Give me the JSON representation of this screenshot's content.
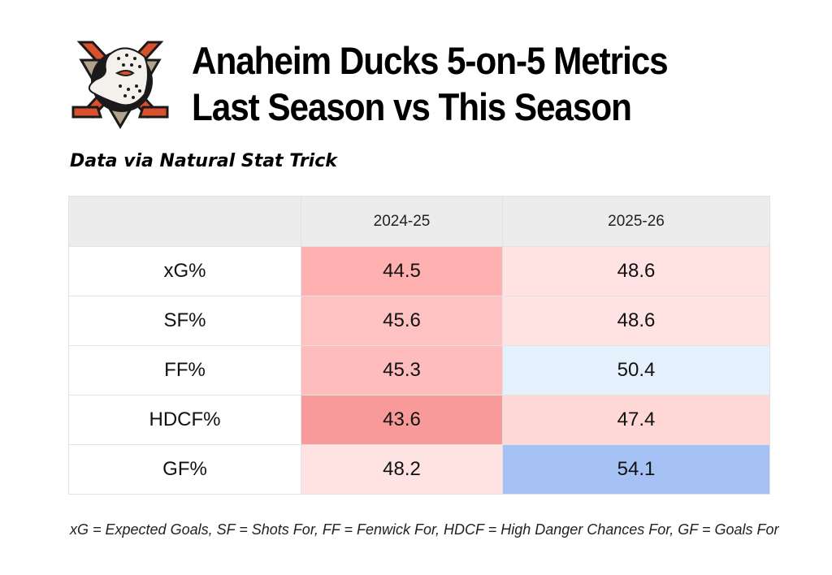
{
  "header": {
    "title_line1": "Anaheim Ducks 5-on-5 Metrics",
    "title_line2": "Last Season vs This Season",
    "source": "Data via Natural Stat Trick",
    "logo_icon": "anaheim-ducks-logo"
  },
  "chart_data": {
    "type": "table",
    "title": "Anaheim Ducks 5-on-5 Metrics Last Season vs This Season",
    "subtitle": "Data via Natural Stat Trick",
    "columns": [
      "",
      "2024-25",
      "2025-26"
    ],
    "rows": [
      {
        "metric": "xG%",
        "values": [
          "44.5",
          "48.6"
        ],
        "colors": [
          "#ffb0b0",
          "#ffe2e2"
        ]
      },
      {
        "metric": "SF%",
        "values": [
          "45.6",
          "48.6"
        ],
        "colors": [
          "#ffc2c2",
          "#ffe2e2"
        ]
      },
      {
        "metric": "FF%",
        "values": [
          "45.3",
          "50.4"
        ],
        "colors": [
          "#ffbcbc",
          "#e4f1fd"
        ]
      },
      {
        "metric": "HDCF%",
        "values": [
          "43.6",
          "47.4"
        ],
        "colors": [
          "#f99a9a",
          "#ffd7d7"
        ]
      },
      {
        "metric": "GF%",
        "values": [
          "48.2",
          "54.1"
        ],
        "colors": [
          "#ffe3e3",
          "#a6c1f3"
        ]
      }
    ],
    "color_scale": {
      "low": "#f99a9a",
      "mid": "#ffe2e2",
      "high": "#a6c1f3"
    },
    "footnote": "xG = Expected Goals, SF = Shots For, FF = Fenwick For, HDCF = High Danger Chances For, GF = Goals For"
  }
}
